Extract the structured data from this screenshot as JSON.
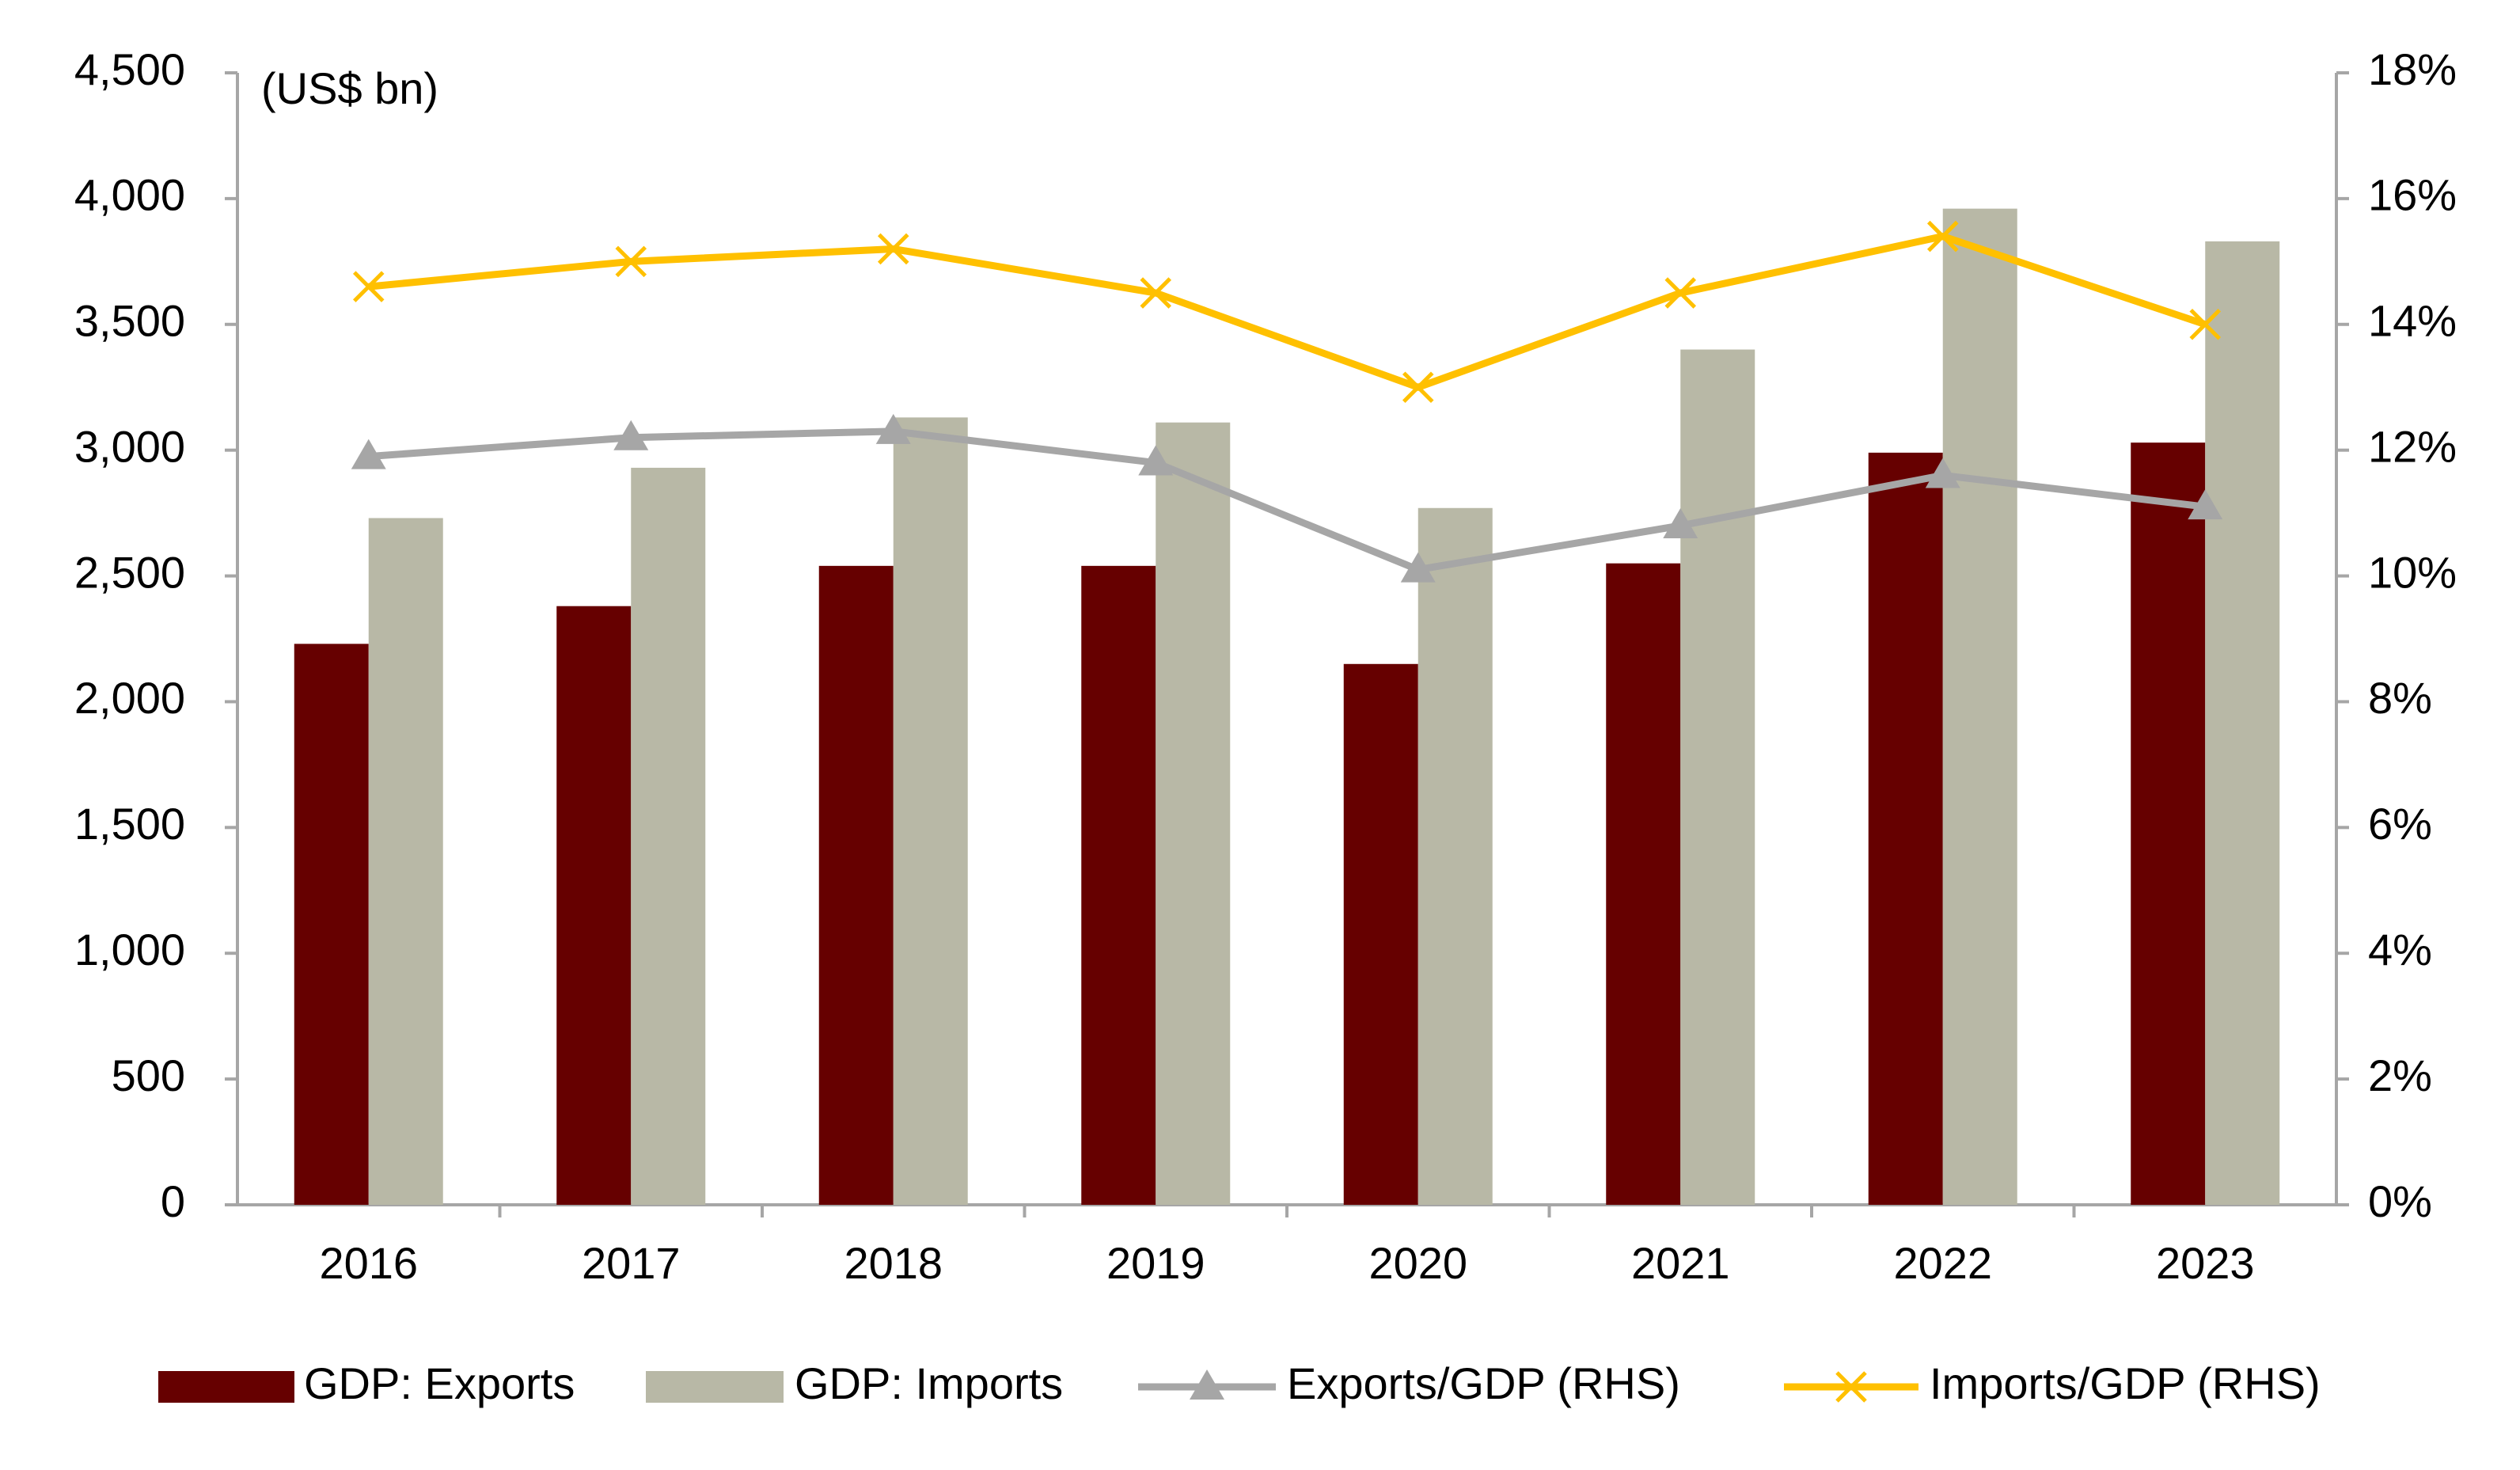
{
  "chart_data": {
    "type": "bar",
    "unit_label": "(US$ bn)",
    "categories": [
      "2016",
      "2017",
      "2018",
      "2019",
      "2020",
      "2021",
      "2022",
      "2023"
    ],
    "series": [
      {
        "name": "GDP: Exports",
        "type": "bar",
        "color": "#660000",
        "values": [
          2230,
          2380,
          2540,
          2540,
          2150,
          2550,
          2990,
          3030
        ]
      },
      {
        "name": "GDP: Imports",
        "type": "bar",
        "color": "#b8b8a6",
        "values": [
          2730,
          2930,
          3130,
          3110,
          2770,
          3400,
          3960,
          3830
        ]
      },
      {
        "name": "Exports/GDP (RHS)",
        "type": "line",
        "axis": "y2",
        "marker": "triangle",
        "color": "#a6a6a6",
        "values": [
          11.9,
          12.2,
          12.3,
          11.8,
          10.1,
          10.8,
          11.6,
          11.1
        ]
      },
      {
        "name": "Imports/GDP (RHS)",
        "type": "line",
        "axis": "y2",
        "marker": "x",
        "color": "#ffc000",
        "values": [
          14.6,
          15.0,
          15.2,
          14.5,
          13.0,
          14.5,
          15.4,
          14.0
        ]
      }
    ],
    "ylim": [
      0,
      4500
    ],
    "yticks": [
      0,
      500,
      {
        "value": 1000,
        "label": "1,000"
      },
      {
        "value": 1500,
        "label": "1,500"
      },
      {
        "value": 2000,
        "label": "2,000"
      },
      {
        "value": 2500,
        "label": "2,500"
      },
      {
        "value": 3000,
        "label": "3,000"
      },
      {
        "value": 3500,
        "label": "3,500"
      },
      {
        "value": 4000,
        "label": "4,000"
      },
      {
        "value": 4500,
        "label": "4,500"
      }
    ],
    "y2lim": [
      0,
      18
    ],
    "y2ticks": [
      {
        "value": 0,
        "label": "0%"
      },
      {
        "value": 2,
        "label": "2%"
      },
      {
        "value": 4,
        "label": "4%"
      },
      {
        "value": 6,
        "label": "6%"
      },
      {
        "value": 8,
        "label": "8%"
      },
      {
        "value": 10,
        "label": "10%"
      },
      {
        "value": 12,
        "label": "12%"
      },
      {
        "value": 14,
        "label": "14%"
      },
      {
        "value": 16,
        "label": "16%"
      },
      {
        "value": 18,
        "label": "18%"
      }
    ],
    "grid": false,
    "legend": "bottom"
  }
}
